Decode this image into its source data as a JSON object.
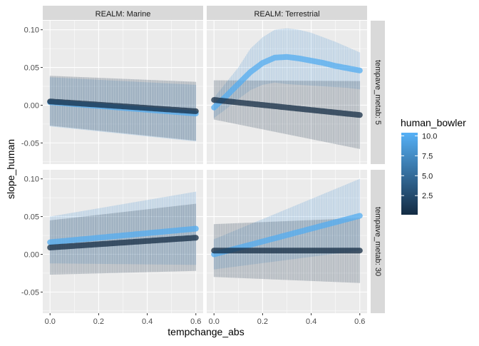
{
  "chart_data": {
    "type": "line",
    "xlabel": "tempchange_abs",
    "ylabel": "slope_human",
    "x_ticks": [
      "0.0",
      "0.2",
      "0.4",
      "0.6"
    ],
    "y_ticks": [
      "-0.05",
      "0.00",
      "0.05",
      "0.10"
    ],
    "xlim": [
      -0.03,
      0.63
    ],
    "ylim": [
      -0.078,
      0.112
    ],
    "facet_columns": [
      "REALM: Marine",
      "REALM: Terrestrial"
    ],
    "facet_rows": [
      "tempave_metab: 5",
      "tempave_metab: 30"
    ],
    "legend": {
      "title": "human_bowler",
      "labels": [
        "10.0",
        "7.5",
        "5.0",
        "2.5"
      ],
      "values": [
        10.0,
        7.5,
        5.0,
        2.5
      ],
      "range": [
        0.1,
        10.4
      ],
      "low_color": "#132b43",
      "high_color": "#56b1f7"
    },
    "grid": true,
    "panels": [
      {
        "column": "REALM: Marine",
        "row": "tempave_metab: 5",
        "series": [
          {
            "bowler": 10.0,
            "x": [
              0.0,
              0.6
            ],
            "y": [
              0.004,
              -0.011
            ],
            "lower": [
              -0.028,
              -0.048
            ],
            "upper": [
              0.037,
              0.027
            ]
          },
          {
            "bowler": 0.1,
            "x": [
              0.0,
              0.6
            ],
            "y": [
              0.005,
              -0.008
            ],
            "lower": [
              -0.027,
              -0.047
            ],
            "upper": [
              0.039,
              0.031
            ]
          }
        ]
      },
      {
        "column": "REALM: Terrestrial",
        "row": "tempave_metab: 5",
        "series": [
          {
            "bowler": 10.0,
            "x": [
              0.0,
              0.05,
              0.1,
              0.15,
              0.2,
              0.25,
              0.3,
              0.35,
              0.4,
              0.45,
              0.5,
              0.55,
              0.6
            ],
            "y": [
              -0.003,
              0.012,
              0.028,
              0.044,
              0.056,
              0.063,
              0.064,
              0.062,
              0.059,
              0.056,
              0.052,
              0.049,
              0.046
            ],
            "lower": [
              -0.017,
              -0.005,
              0.008,
              0.02,
              0.027,
              0.03,
              0.028,
              0.027,
              0.026,
              0.025,
              0.024,
              0.023,
              0.021
            ],
            "upper": [
              0.01,
              0.03,
              0.05,
              0.075,
              0.09,
              0.1,
              0.102,
              0.1,
              0.096,
              0.09,
              0.084,
              0.077,
              0.07
            ]
          },
          {
            "bowler": 0.1,
            "x": [
              0.0,
              0.6
            ],
            "y": [
              0.007,
              -0.013
            ],
            "lower": [
              -0.019,
              -0.058
            ],
            "upper": [
              0.033,
              0.032
            ]
          }
        ]
      },
      {
        "column": "REALM: Marine",
        "row": "tempave_metab: 30",
        "series": [
          {
            "bowler": 10.0,
            "x": [
              0.0,
              0.6
            ],
            "y": [
              0.016,
              0.034
            ],
            "lower": [
              -0.012,
              -0.014
            ],
            "upper": [
              0.05,
              0.083
            ]
          },
          {
            "bowler": 0.1,
            "x": [
              0.0,
              0.6
            ],
            "y": [
              0.009,
              0.022
            ],
            "lower": [
              -0.027,
              -0.022
            ],
            "upper": [
              0.045,
              0.067
            ]
          }
        ]
      },
      {
        "column": "REALM: Terrestrial",
        "row": "tempave_metab: 30",
        "series": [
          {
            "bowler": 10.0,
            "x": [
              0.0,
              0.6
            ],
            "y": [
              0.0,
              0.051
            ],
            "lower": [
              -0.02,
              0.005
            ],
            "upper": [
              0.02,
              0.1
            ]
          },
          {
            "bowler": 0.1,
            "x": [
              0.0,
              0.6
            ],
            "y": [
              0.005,
              0.005
            ],
            "lower": [
              -0.03,
              -0.038
            ],
            "upper": [
              0.04,
              0.048
            ]
          }
        ]
      }
    ]
  }
}
